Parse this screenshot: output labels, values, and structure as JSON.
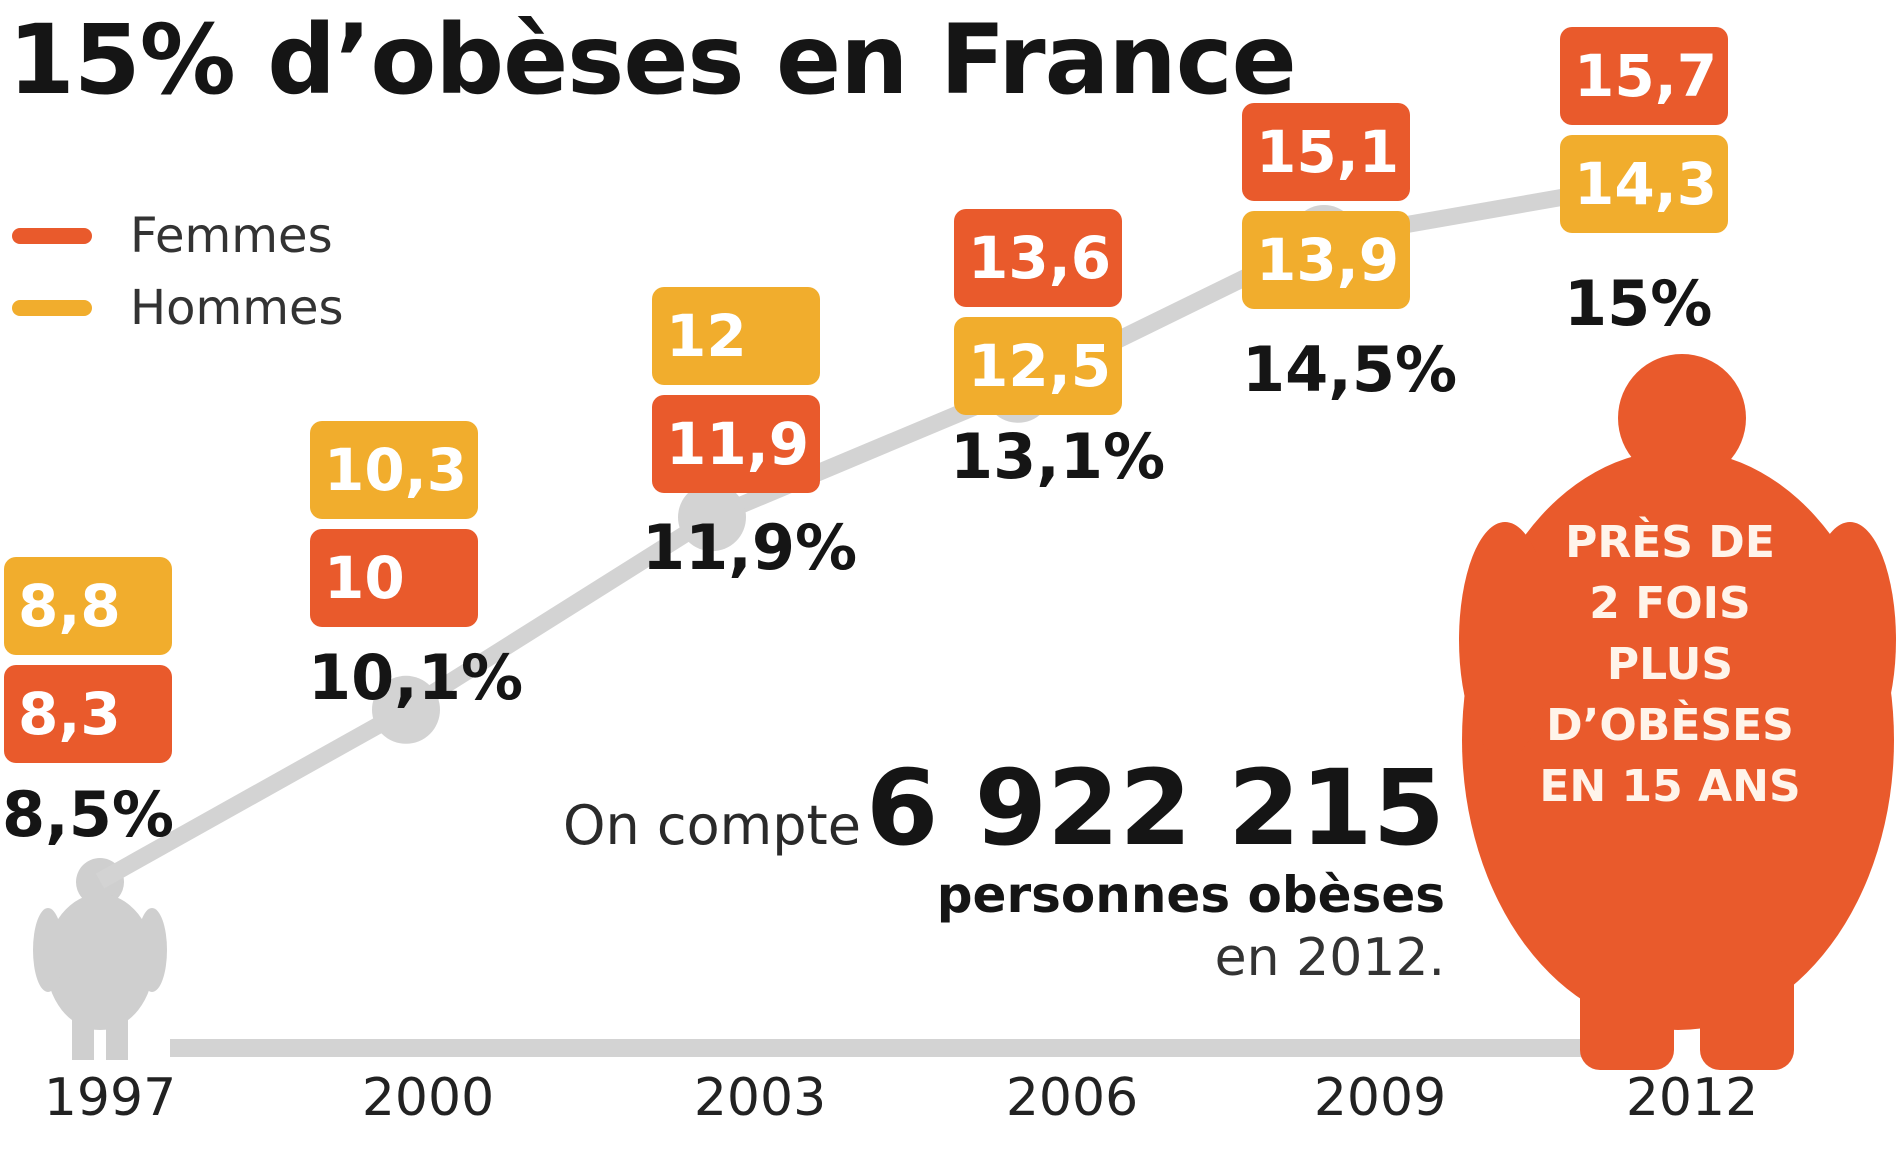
{
  "title": "15% d’obèses en France",
  "legend": [
    {
      "name": "Femmes",
      "color": "#e95a2c"
    },
    {
      "name": "Hommes",
      "color": "#f1ad2d"
    }
  ],
  "colors": {
    "femmes": "#e95a2c",
    "hommes": "#f1ad2d",
    "line": "#d3d3d3",
    "silhouette_small": "#cfcfcf",
    "silhouette_big": "#e95a2c"
  },
  "chart_data": {
    "type": "line",
    "title": "15% d’obèses en France",
    "categories": [
      "1997",
      "2000",
      "2003",
      "2006",
      "2009",
      "2012"
    ],
    "total": {
      "values": [
        8.5,
        10.1,
        11.9,
        13.1,
        14.5,
        15.0
      ],
      "labels": [
        "8,5%",
        "10,1%",
        "11,9%",
        "13,1%",
        "14,5%",
        "15%"
      ]
    },
    "series": [
      {
        "name": "Femmes",
        "values": [
          8.3,
          10,
          11.9,
          13.6,
          15.1,
          15.7
        ],
        "labels": [
          "8,3",
          "10",
          "11,9",
          "13,6",
          "15,1",
          "15,7"
        ]
      },
      {
        "name": "Hommes",
        "values": [
          8.8,
          10.3,
          12,
          12.5,
          13.9,
          14.3
        ],
        "labels": [
          "8,8",
          "10,3",
          "12",
          "12,5",
          "13,9",
          "14,3"
        ]
      }
    ]
  },
  "annotation": {
    "prefix": "On compte",
    "number": "6 922 215",
    "line2": "personnes obèses",
    "line3": "en 2012."
  },
  "callout": {
    "lines": [
      "Près de",
      "2 fois",
      "plus",
      "d’obèses",
      "en 15 ans"
    ]
  }
}
